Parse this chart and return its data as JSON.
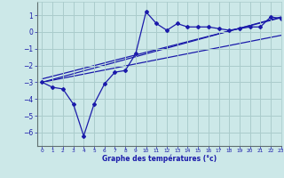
{
  "xlabel": "Graphe des températures (°c)",
  "xlim": [
    -0.5,
    23
  ],
  "ylim": [
    -6.8,
    1.8
  ],
  "yticks": [
    1,
    0,
    -1,
    -2,
    -3,
    -4,
    -5,
    -6
  ],
  "xticks": [
    0,
    1,
    2,
    3,
    4,
    5,
    6,
    7,
    8,
    9,
    10,
    11,
    12,
    13,
    14,
    15,
    16,
    17,
    18,
    19,
    20,
    21,
    22,
    23
  ],
  "bg_color": "#cce8e8",
  "grid_color": "#aacccc",
  "line_color": "#1a1aaa",
  "line1_x": [
    0,
    1,
    2,
    3,
    4,
    5,
    6,
    7,
    8,
    9,
    10,
    11,
    12,
    13,
    14,
    15,
    16,
    17,
    18,
    19,
    20,
    21,
    22,
    23
  ],
  "line1_y": [
    -3.0,
    -3.3,
    -3.4,
    -4.3,
    -6.2,
    -4.3,
    -3.1,
    -2.4,
    -2.3,
    -1.3,
    1.2,
    0.5,
    0.1,
    0.5,
    0.3,
    0.3,
    0.3,
    0.2,
    0.1,
    0.2,
    0.3,
    0.3,
    0.9,
    0.8
  ],
  "line2_x": [
    0,
    23
  ],
  "line2_y": [
    -3.0,
    0.9
  ],
  "line3_x": [
    0,
    23
  ],
  "line3_y": [
    -3.0,
    -0.2
  ],
  "line4_x": [
    0,
    23
  ],
  "line4_y": [
    -2.8,
    0.85
  ]
}
